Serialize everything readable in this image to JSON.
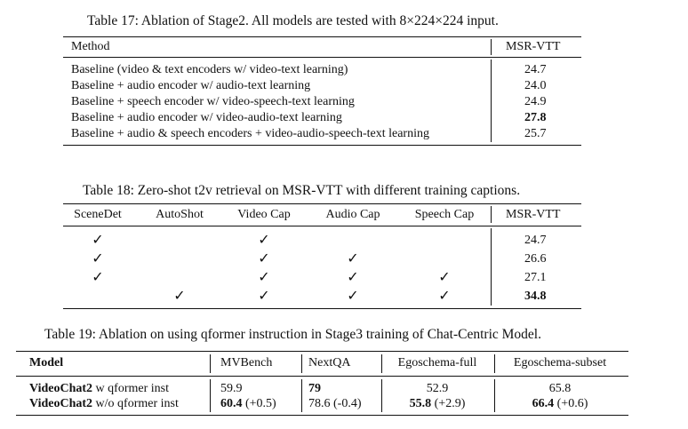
{
  "table17": {
    "caption": "Table 17: Ablation of Stage2. All models are tested with 8×224×224 input.",
    "headers": {
      "method": "Method",
      "score": "MSR-VTT"
    },
    "rows": [
      {
        "method": "Baseline (video & text encoders w/ video-text learning)",
        "score": "24.7"
      },
      {
        "method": "Baseline + audio encoder w/ audio-text learning",
        "score": "24.0"
      },
      {
        "method": "Baseline + speech encoder w/ video-speech-text learning",
        "score": "24.9"
      },
      {
        "method": "Baseline + audio encoder w/ video-audio-text learning",
        "score": "27.8"
      },
      {
        "method": "Baseline + audio & speech encoders + video-audio-speech-text learning",
        "score": "25.7"
      }
    ]
  },
  "table18": {
    "caption": "Table 18: Zero-shot t2v retrieval on MSR-VTT with different training captions.",
    "headers": {
      "scenedet": "SceneDet",
      "autoshot": "AutoShot",
      "videocap": "Video Cap",
      "audiocap": "Audio Cap",
      "speechcap": "Speech Cap",
      "score": "MSR-VTT"
    },
    "check_mark": "✓",
    "rows": [
      {
        "scenedet": true,
        "autoshot": false,
        "videocap": true,
        "audiocap": false,
        "speechcap": false,
        "score": "24.7"
      },
      {
        "scenedet": true,
        "autoshot": false,
        "videocap": true,
        "audiocap": true,
        "speechcap": false,
        "score": "26.6"
      },
      {
        "scenedet": true,
        "autoshot": false,
        "videocap": true,
        "audiocap": true,
        "speechcap": true,
        "score": "27.1"
      },
      {
        "scenedet": false,
        "autoshot": true,
        "videocap": true,
        "audiocap": true,
        "speechcap": true,
        "score": "34.8"
      }
    ]
  },
  "table19": {
    "caption": "Table 19: Ablation on using qformer instruction in Stage3 training of Chat-Centric Model.",
    "headers": {
      "model": "Model",
      "mvbench": "MVBench",
      "nextqa": "NextQA",
      "egofull": "Egoschema-full",
      "egosubset": "Egoschema-subset"
    },
    "rows": [
      {
        "model_bold": "VideoChat2",
        "model_rest": " w qformer inst",
        "mvbench": "59.9",
        "mvbench_delta": "",
        "nextqa": "79",
        "nextqa_delta": "",
        "egofull": "52.9",
        "egofull_delta": "",
        "egosubset": "65.8",
        "egosubset_delta": ""
      },
      {
        "model_bold": "VideoChat2",
        "model_rest": " w/o qformer inst",
        "mvbench": "60.4",
        "mvbench_delta": " (+0.5)",
        "nextqa": "78.6",
        "nextqa_delta": " (-0.4)",
        "egofull": "55.8",
        "egofull_delta": " (+2.9)",
        "egosubset": "66.4",
        "egosubset_delta": " (+0.6)"
      }
    ]
  }
}
